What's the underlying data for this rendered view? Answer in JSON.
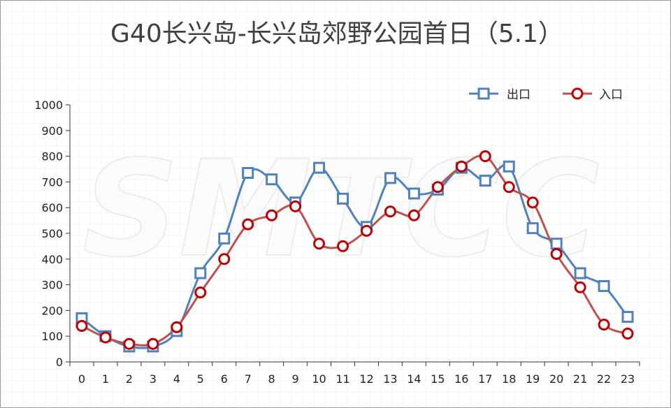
{
  "watermark": "SMTCC",
  "colors": {
    "background": "#ffffff",
    "paper_grid": "#f1f1f1",
    "title": "#404040",
    "axis": "#333333"
  },
  "chart_data": {
    "type": "line",
    "title": "G40长兴岛-长兴岛郊野公园首日（5.1）",
    "xlabel": "",
    "ylabel": "",
    "categories": [
      "0",
      "1",
      "2",
      "3",
      "4",
      "5",
      "6",
      "7",
      "8",
      "9",
      "10",
      "11",
      "12",
      "13",
      "14",
      "15",
      "16",
      "17",
      "18",
      "19",
      "20",
      "21",
      "22",
      "23"
    ],
    "series": [
      {
        "name": "出口",
        "marker": "square",
        "color": "#4f81bd",
        "marker_color": "#4f81bd",
        "values": [
          170,
          100,
          60,
          60,
          120,
          345,
          480,
          735,
          710,
          620,
          755,
          635,
          525,
          715,
          655,
          670,
          755,
          705,
          760,
          520,
          460,
          345,
          295,
          175
        ]
      },
      {
        "name": "入口",
        "marker": "circle",
        "color": "#c0504d",
        "marker_color": "#c00000",
        "values": [
          140,
          95,
          70,
          70,
          135,
          270,
          400,
          535,
          570,
          605,
          460,
          450,
          510,
          585,
          570,
          680,
          760,
          800,
          680,
          620,
          420,
          290,
          145,
          110
        ]
      }
    ],
    "ylim": [
      0,
      1000
    ],
    "yticks": [
      0,
      100,
      200,
      300,
      400,
      500,
      600,
      700,
      800,
      900,
      1000
    ],
    "smooth": true,
    "grid": false,
    "legend": "top-right"
  }
}
